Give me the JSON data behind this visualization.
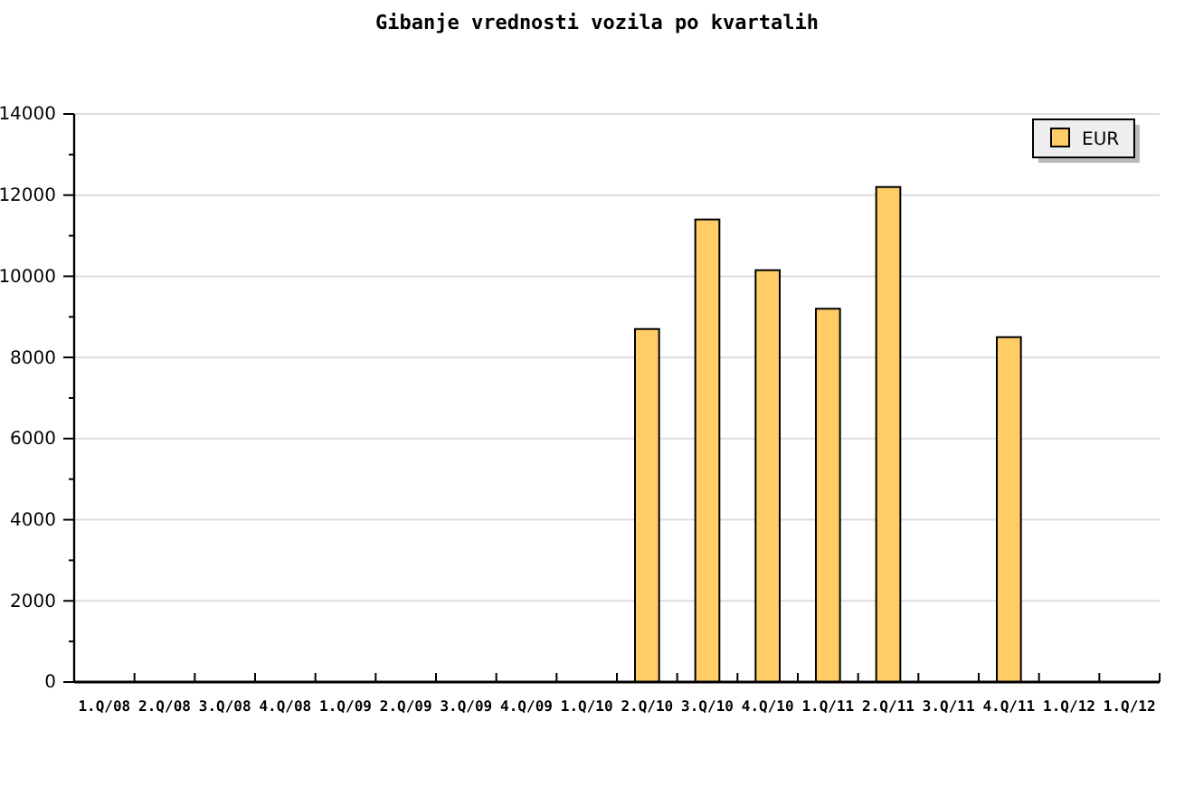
{
  "chart_data": {
    "type": "bar",
    "title": "Gibanje vrednosti vozila po kvartalih",
    "categories": [
      "1.Q/08",
      "2.Q/08",
      "3.Q/08",
      "4.Q/08",
      "1.Q/09",
      "2.Q/09",
      "3.Q/09",
      "4.Q/09",
      "1.Q/10",
      "2.Q/10",
      "3.Q/10",
      "4.Q/10",
      "1.Q/11",
      "2.Q/11",
      "3.Q/11",
      "4.Q/11",
      "1.Q/12",
      "1.Q/12"
    ],
    "series": [
      {
        "name": "EUR",
        "color": "#ffcc66",
        "values": [
          null,
          null,
          null,
          null,
          null,
          null,
          null,
          null,
          null,
          8700,
          11400,
          10150,
          9200,
          12200,
          null,
          8500,
          null,
          null
        ]
      }
    ],
    "ylim": [
      0,
      14000
    ],
    "yticks": [
      0,
      {
        "value": 1000,
        "label": null
      },
      2000,
      {
        "value": 3000,
        "label": null
      },
      4000,
      {
        "value": 5000,
        "label": null
      },
      6000,
      {
        "value": 7000,
        "label": null
      },
      8000,
      {
        "value": 9000,
        "label": null
      },
      10000,
      {
        "value": 11000,
        "label": null
      },
      12000,
      {
        "value": 13000,
        "label": null
      },
      14000
    ],
    "grid": "y",
    "legend": "top right"
  }
}
